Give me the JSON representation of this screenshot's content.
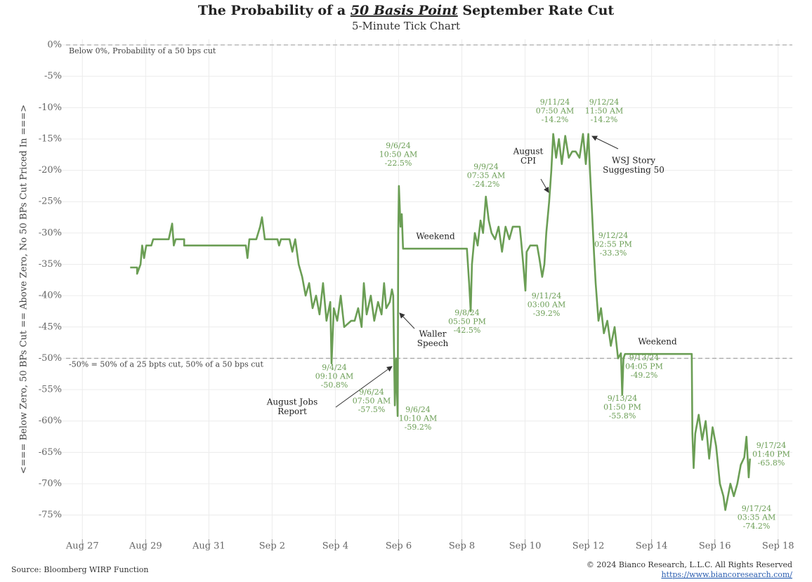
{
  "chart_data": {
    "type": "line",
    "title": [
      "The Probability of a ",
      "50 Basis Point",
      " September Rate Cut"
    ],
    "subtitle": "5-Minute Tick Chart",
    "y_label": "<=== Below Zero, 50 BPs Cut == Above Zero, No 50 BPs Cut Priced In ===>",
    "source": "Source: Bloomberg WIRP Function",
    "copyright": "© 2024 Bianco Research, L.L.C. All Rights Reserved",
    "link": "https://www.biancoresearch.com/",
    "color": "#6b9e55",
    "annotation_color": "#6b9e55",
    "grid": true,
    "xlim": [
      -1.05,
      22.45
    ],
    "ylim": [
      -79.3,
      0.9
    ],
    "xticks": [
      {
        "value": 0,
        "label": "Aug 27"
      },
      {
        "value": 2,
        "label": "Aug 29"
      },
      {
        "value": 4,
        "label": "Aug 31"
      },
      {
        "value": 6,
        "label": "Sep 2"
      },
      {
        "value": 8,
        "label": "Sep 4"
      },
      {
        "value": 10,
        "label": "Sep 6"
      },
      {
        "value": 12,
        "label": "Sep 8"
      },
      {
        "value": 14,
        "label": "Sep 10"
      },
      {
        "value": 16,
        "label": "Sep 12"
      },
      {
        "value": 18,
        "label": "Sep 14"
      },
      {
        "value": 20,
        "label": "Sep 16"
      },
      {
        "value": 22,
        "label": "Sep 18"
      }
    ],
    "yticks": [
      {
        "value": 0,
        "label": "0%"
      },
      {
        "value": -5,
        "label": "-5%"
      },
      {
        "value": -10,
        "label": "-10%"
      },
      {
        "value": -15,
        "label": "-15%"
      },
      {
        "value": -20,
        "label": "-20%"
      },
      {
        "value": -25,
        "label": "-25%"
      },
      {
        "value": -30,
        "label": "-30%"
      },
      {
        "value": -35,
        "label": "-35%"
      },
      {
        "value": -40,
        "label": "-40%"
      },
      {
        "value": -45,
        "label": "-45%"
      },
      {
        "value": -50,
        "label": "-50%"
      },
      {
        "value": -55,
        "label": "-55%"
      },
      {
        "value": -60,
        "label": "-60%"
      },
      {
        "value": -65,
        "label": "-65%"
      },
      {
        "value": -70,
        "label": "-70%"
      },
      {
        "value": -75,
        "label": "-75%"
      }
    ],
    "reference_lines": [
      {
        "value": 0,
        "label": "Below 0%, Probability of a 50 bps cut"
      },
      {
        "value": -50,
        "label": "-50% = 50% of a 25 bpts cut, 50% of a 50 bps cut"
      }
    ],
    "x": [
      1.51,
      1.73,
      1.73,
      1.84,
      1.89,
      1.95,
      2.02,
      2.18,
      2.24,
      2.73,
      2.84,
      2.89,
      2.95,
      3.22,
      3.22,
      5.17,
      5.22,
      5.28,
      5.5,
      5.62,
      5.68,
      5.77,
      6.17,
      6.22,
      6.28,
      6.55,
      6.64,
      6.73,
      6.84,
      6.95,
      7.06,
      7.17,
      7.28,
      7.39,
      7.5,
      7.61,
      7.72,
      7.84,
      7.88,
      7.95,
      8.06,
      8.17,
      8.28,
      8.5,
      8.61,
      8.72,
      8.83,
      8.9,
      8.99,
      9.12,
      9.23,
      9.35,
      9.46,
      9.54,
      9.61,
      9.72,
      9.79,
      9.83,
      9.88,
      9.92,
      9.97,
      9.99,
      10.01,
      10.06,
      10.1,
      10.14,
      12.16,
      12.23,
      12.28,
      12.32,
      12.41,
      12.5,
      12.59,
      12.67,
      12.76,
      12.85,
      12.94,
      13.05,
      13.16,
      13.27,
      13.38,
      13.5,
      13.61,
      13.83,
      13.87,
      13.94,
      14.01,
      14.05,
      14.16,
      14.38,
      14.45,
      14.54,
      14.61,
      14.67,
      14.76,
      14.83,
      14.89,
      14.98,
      15.07,
      15.16,
      15.27,
      15.38,
      15.49,
      15.6,
      15.72,
      15.83,
      15.92,
      16.0,
      16.05,
      16.12,
      16.18,
      16.23,
      16.32,
      16.4,
      16.49,
      16.6,
      16.71,
      16.83,
      16.94,
      17.03,
      17.07,
      17.11,
      17.16,
      19.27,
      19.29,
      19.33,
      19.38,
      19.49,
      19.6,
      19.71,
      19.82,
      19.93,
      20.04,
      20.16,
      20.27,
      20.33,
      20.49,
      20.6,
      20.71,
      20.82,
      20.93,
      21.0,
      21.07,
      21.11
    ],
    "values": [
      -35.5,
      -35.5,
      -36.5,
      -35,
      -32,
      -34,
      -32,
      -32,
      -31,
      -31,
      -28.5,
      -32,
      -31,
      -31,
      -32,
      -32,
      -34,
      -31,
      -31,
      -29,
      -27.5,
      -31,
      -31,
      -32,
      -31,
      -31,
      -33,
      -31,
      -35,
      -37,
      -40,
      -38,
      -42,
      -40,
      -43,
      -38,
      -44,
      -41,
      -50.8,
      -42,
      -44,
      -40,
      -45,
      -44,
      -44,
      -42,
      -45,
      -38,
      -43,
      -40,
      -44,
      -41,
      -43,
      -38,
      -42,
      -41,
      -39,
      -40,
      -57.5,
      -50,
      -59.2,
      -30,
      -22.5,
      -29,
      -27,
      -32.5,
      -32.5,
      -38,
      -42.5,
      -35,
      -30,
      -32,
      -28,
      -30,
      -24.2,
      -28,
      -30,
      -31,
      -29,
      -33,
      -29,
      -31,
      -29,
      -29,
      -31,
      -35,
      -39.2,
      -33,
      -32,
      -32,
      -34,
      -37,
      -35,
      -30,
      -25,
      -20,
      -14.2,
      -18,
      -15,
      -19,
      -14.5,
      -18,
      -17,
      -17,
      -18,
      -14.2,
      -19,
      -14.2,
      -20,
      -27,
      -33.3,
      -38,
      -44,
      -42,
      -46,
      -44,
      -48,
      -45,
      -50,
      -49.2,
      -55.8,
      -50,
      -49.3,
      -49.3,
      -62,
      -67.5,
      -62,
      -59,
      -63,
      -60,
      -66,
      -61,
      -64,
      -70,
      -72,
      -74.2,
      -70,
      -72,
      -70,
      -67,
      -65.8,
      -62.5,
      -69,
      -66
    ],
    "annotations": [
      {
        "text": [
          "9/6/24",
          "10:50 AM",
          "-22.5%"
        ]
      },
      {
        "text": [
          "9/9/24",
          "07:35 AM",
          "-24.2%"
        ]
      },
      {
        "text": [
          "9/11/24",
          "07:50 AM",
          "-14.2%"
        ]
      },
      {
        "text": [
          "9/12/24",
          "11:50 AM",
          "-14.2%"
        ]
      },
      {
        "text": [
          "9/12/24",
          "02:55 PM",
          "-33.3%"
        ]
      },
      {
        "text": [
          "9/11/24",
          "03:00 AM",
          "-39.2%"
        ]
      },
      {
        "text": [
          "9/8/24",
          "05:50 PM",
          "-42.5%"
        ]
      },
      {
        "text": [
          "9/4/24",
          "09:10 AM",
          "-50.8%"
        ]
      },
      {
        "text": [
          "9/6/24",
          "07:50 AM",
          "-57.5%"
        ]
      },
      {
        "text": [
          "9/6/24",
          "10:10 AM",
          "-59.2%"
        ]
      },
      {
        "text": [
          "9/13/24",
          "04:05 PM",
          "-49.2%"
        ]
      },
      {
        "text": [
          "9/13/24",
          "01:50 PM",
          "-55.8%"
        ]
      },
      {
        "text": [
          "9/17/24",
          "01:40 PM",
          "-65.8%"
        ]
      },
      {
        "text": [
          "9/17/24",
          "03:35 AM",
          "-74.2%"
        ]
      }
    ],
    "events": [
      {
        "text": [
          "Weekend"
        ]
      },
      {
        "text": [
          "Weekend"
        ]
      },
      {
        "text": [
          "August",
          "CPI"
        ]
      },
      {
        "text": [
          "WSJ Story",
          "Suggesting 50"
        ]
      },
      {
        "text": [
          "Waller",
          "Speech"
        ]
      },
      {
        "text": [
          "August Jobs",
          "Report"
        ]
      }
    ]
  }
}
